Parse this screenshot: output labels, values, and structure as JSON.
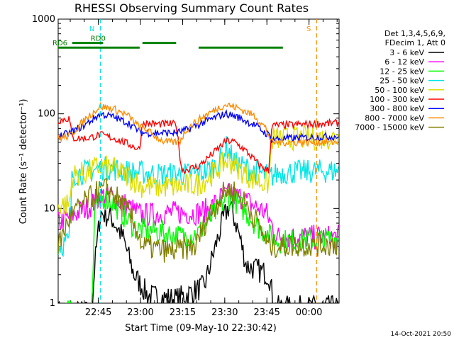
{
  "chart_data": {
    "type": "line",
    "title": "RHESSI Observing Summary Count Rates",
    "xlabel": "Start Time (09-May-10 22:30:42)",
    "ylabel": "Count Rate (s⁻¹ detector⁻¹)",
    "yscale": "log",
    "ylim": [
      1,
      1000
    ],
    "xlim_minutes_after_22_30_42": [
      0,
      100
    ],
    "x_tick_labels": [
      "22:45",
      "23:00",
      "23:15",
      "23:30",
      "23:45",
      "00:00"
    ],
    "x_tick_minutes": [
      14.3,
      29.3,
      44.3,
      59.3,
      74.3,
      89.3
    ],
    "y_tick_labels": [
      "1",
      "10",
      "100",
      "1000"
    ],
    "y_tick_values": [
      1,
      10,
      100,
      1000
    ],
    "legend_header": [
      "Det 1,3,4,5,6,9,",
      "FDecim 1, Att 0"
    ],
    "legend_placement": "right, outside plot",
    "timestamp": "14-Oct-2021 20:50",
    "series": [
      {
        "name": "3 - 6 keV",
        "color": "#000000",
        "points": [
          [
            0,
            0.8
          ],
          [
            12,
            0.8
          ],
          [
            13,
            2.5
          ],
          [
            15,
            9
          ],
          [
            19,
            8
          ],
          [
            23,
            5
          ],
          [
            27,
            2
          ],
          [
            32,
            1.2
          ],
          [
            42,
            1.1
          ],
          [
            52,
            1.5
          ],
          [
            56,
            4
          ],
          [
            59,
            8
          ],
          [
            61,
            11
          ],
          [
            64,
            6
          ],
          [
            67,
            2.5
          ],
          [
            75,
            2
          ],
          [
            77,
            0.9
          ],
          [
            100,
            0.9
          ]
        ]
      },
      {
        "name": "6 - 12 keV",
        "color": "#ff00ff",
        "points": [
          [
            0,
            7
          ],
          [
            12,
            11
          ],
          [
            14,
            13
          ],
          [
            17,
            14
          ],
          [
            20,
            13
          ],
          [
            24,
            11
          ],
          [
            28,
            9
          ],
          [
            30,
            8.5
          ],
          [
            36,
            8.8
          ],
          [
            41,
            9
          ],
          [
            50,
            9
          ],
          [
            54,
            10
          ],
          [
            58,
            13
          ],
          [
            61,
            14
          ],
          [
            65,
            13
          ],
          [
            69,
            11
          ],
          [
            74,
            9
          ],
          [
            78,
            5
          ],
          [
            100,
            5
          ]
        ]
      },
      {
        "name": "12 - 25 keV",
        "color": "#00ff00",
        "points": [
          [
            0,
            0.8
          ],
          [
            12,
            0.8
          ],
          [
            13,
            9
          ],
          [
            16,
            13
          ],
          [
            19,
            12
          ],
          [
            24,
            8
          ],
          [
            28,
            6
          ],
          [
            30,
            6
          ],
          [
            38,
            5.5
          ],
          [
            44,
            5
          ],
          [
            50,
            5.5
          ],
          [
            56,
            9
          ],
          [
            59,
            12
          ],
          [
            62,
            13
          ],
          [
            67,
            9
          ],
          [
            72,
            6
          ],
          [
            76,
            5
          ],
          [
            78,
            4.5
          ],
          [
            100,
            4.8
          ]
        ]
      },
      {
        "name": "25 - 50 keV",
        "color": "#00e5e5",
        "points": [
          [
            0,
            4
          ],
          [
            4,
            4.5
          ],
          [
            5,
            23
          ],
          [
            12,
            25
          ],
          [
            15,
            27
          ],
          [
            20,
            26
          ],
          [
            27,
            24
          ],
          [
            30,
            24
          ],
          [
            35,
            23
          ],
          [
            42,
            23
          ],
          [
            49,
            23
          ],
          [
            52,
            24
          ],
          [
            57,
            30
          ],
          [
            60,
            45
          ],
          [
            63,
            30
          ],
          [
            68,
            26
          ],
          [
            73,
            23
          ],
          [
            75,
            22
          ],
          [
            76,
            22
          ],
          [
            79,
            24
          ],
          [
            100,
            25
          ]
        ]
      },
      {
        "name": "50 - 100 keV",
        "color": "#dddd00",
        "points": [
          [
            0,
            11
          ],
          [
            4,
            11
          ],
          [
            5,
            22
          ],
          [
            10,
            24
          ],
          [
            15,
            28
          ],
          [
            20,
            26
          ],
          [
            25,
            22
          ],
          [
            29,
            18
          ],
          [
            30,
            17
          ],
          [
            42,
            17
          ],
          [
            50,
            18
          ],
          [
            54,
            22
          ],
          [
            58,
            28
          ],
          [
            60,
            32
          ],
          [
            62,
            30
          ],
          [
            66,
            24
          ],
          [
            70,
            20
          ],
          [
            75,
            18
          ],
          [
            76,
            55
          ],
          [
            100,
            56
          ]
        ]
      },
      {
        "name": "100 - 300 keV",
        "color": "#ff0000",
        "points": [
          [
            0,
            85
          ],
          [
            4,
            90
          ],
          [
            5,
            55
          ],
          [
            10,
            55
          ],
          [
            15,
            60
          ],
          [
            20,
            55
          ],
          [
            25,
            48
          ],
          [
            29,
            42
          ],
          [
            30,
            80
          ],
          [
            35,
            78
          ],
          [
            42,
            78
          ],
          [
            44,
            25
          ],
          [
            50,
            28
          ],
          [
            55,
            38
          ],
          [
            60,
            52
          ],
          [
            63,
            50
          ],
          [
            67,
            40
          ],
          [
            72,
            28
          ],
          [
            75,
            25
          ],
          [
            76,
            75
          ],
          [
            100,
            80
          ]
        ]
      },
      {
        "name": "300 - 800 keV",
        "color": "#0000ff",
        "points": [
          [
            0,
            58
          ],
          [
            4,
            62
          ],
          [
            10,
            78
          ],
          [
            15,
            100
          ],
          [
            20,
            92
          ],
          [
            25,
            80
          ],
          [
            29,
            65
          ],
          [
            30,
            63
          ],
          [
            42,
            63
          ],
          [
            46,
            68
          ],
          [
            52,
            82
          ],
          [
            58,
            97
          ],
          [
            60,
            100
          ],
          [
            64,
            92
          ],
          [
            70,
            76
          ],
          [
            74,
            62
          ],
          [
            75,
            60
          ],
          [
            76,
            54
          ],
          [
            100,
            58
          ]
        ]
      },
      {
        "name": "800 - 7000 keV",
        "color": "#ff8c00",
        "points": [
          [
            0,
            55
          ],
          [
            4,
            58
          ],
          [
            10,
            90
          ],
          [
            15,
            120
          ],
          [
            20,
            112
          ],
          [
            25,
            95
          ],
          [
            29,
            72
          ],
          [
            30,
            72
          ],
          [
            38,
            50
          ],
          [
            43,
            50
          ],
          [
            46,
            70
          ],
          [
            52,
            95
          ],
          [
            58,
            120
          ],
          [
            60,
            125
          ],
          [
            64,
            115
          ],
          [
            70,
            95
          ],
          [
            74,
            70
          ],
          [
            76,
            50
          ],
          [
            100,
            50
          ]
        ]
      },
      {
        "name": "7000 - 15000 keV",
        "color": "#808000",
        "points": [
          [
            0,
            4
          ],
          [
            4,
            8
          ],
          [
            10,
            12
          ],
          [
            14,
            15
          ],
          [
            17,
            16
          ],
          [
            20,
            14
          ],
          [
            24,
            10
          ],
          [
            28,
            6
          ],
          [
            30,
            4
          ],
          [
            40,
            3.5
          ],
          [
            49,
            4
          ],
          [
            53,
            8
          ],
          [
            57,
            12
          ],
          [
            60,
            16
          ],
          [
            63,
            15
          ],
          [
            67,
            11
          ],
          [
            71,
            7
          ],
          [
            75,
            4
          ],
          [
            100,
            4.2
          ]
        ]
      }
    ],
    "attenuator_marks": [
      {
        "label": "N",
        "color": "#00e5e5",
        "x": 15,
        "ymin": 1,
        "ymax": 1000
      },
      {
        "label": "S",
        "color": "#ff8c00",
        "x": 92,
        "ymin": 1,
        "ymax": 1000
      }
    ],
    "orbit_bars": [
      {
        "label": "RD0",
        "color": "#008000",
        "x_ranges": [
          [
            5,
            16
          ],
          [
            30,
            42
          ]
        ],
        "y": 560
      },
      {
        "label": "RD6",
        "color": "#008000",
        "x_ranges": [
          [
            0,
            29
          ],
          [
            50,
            80
          ]
        ],
        "y": 500
      }
    ]
  }
}
